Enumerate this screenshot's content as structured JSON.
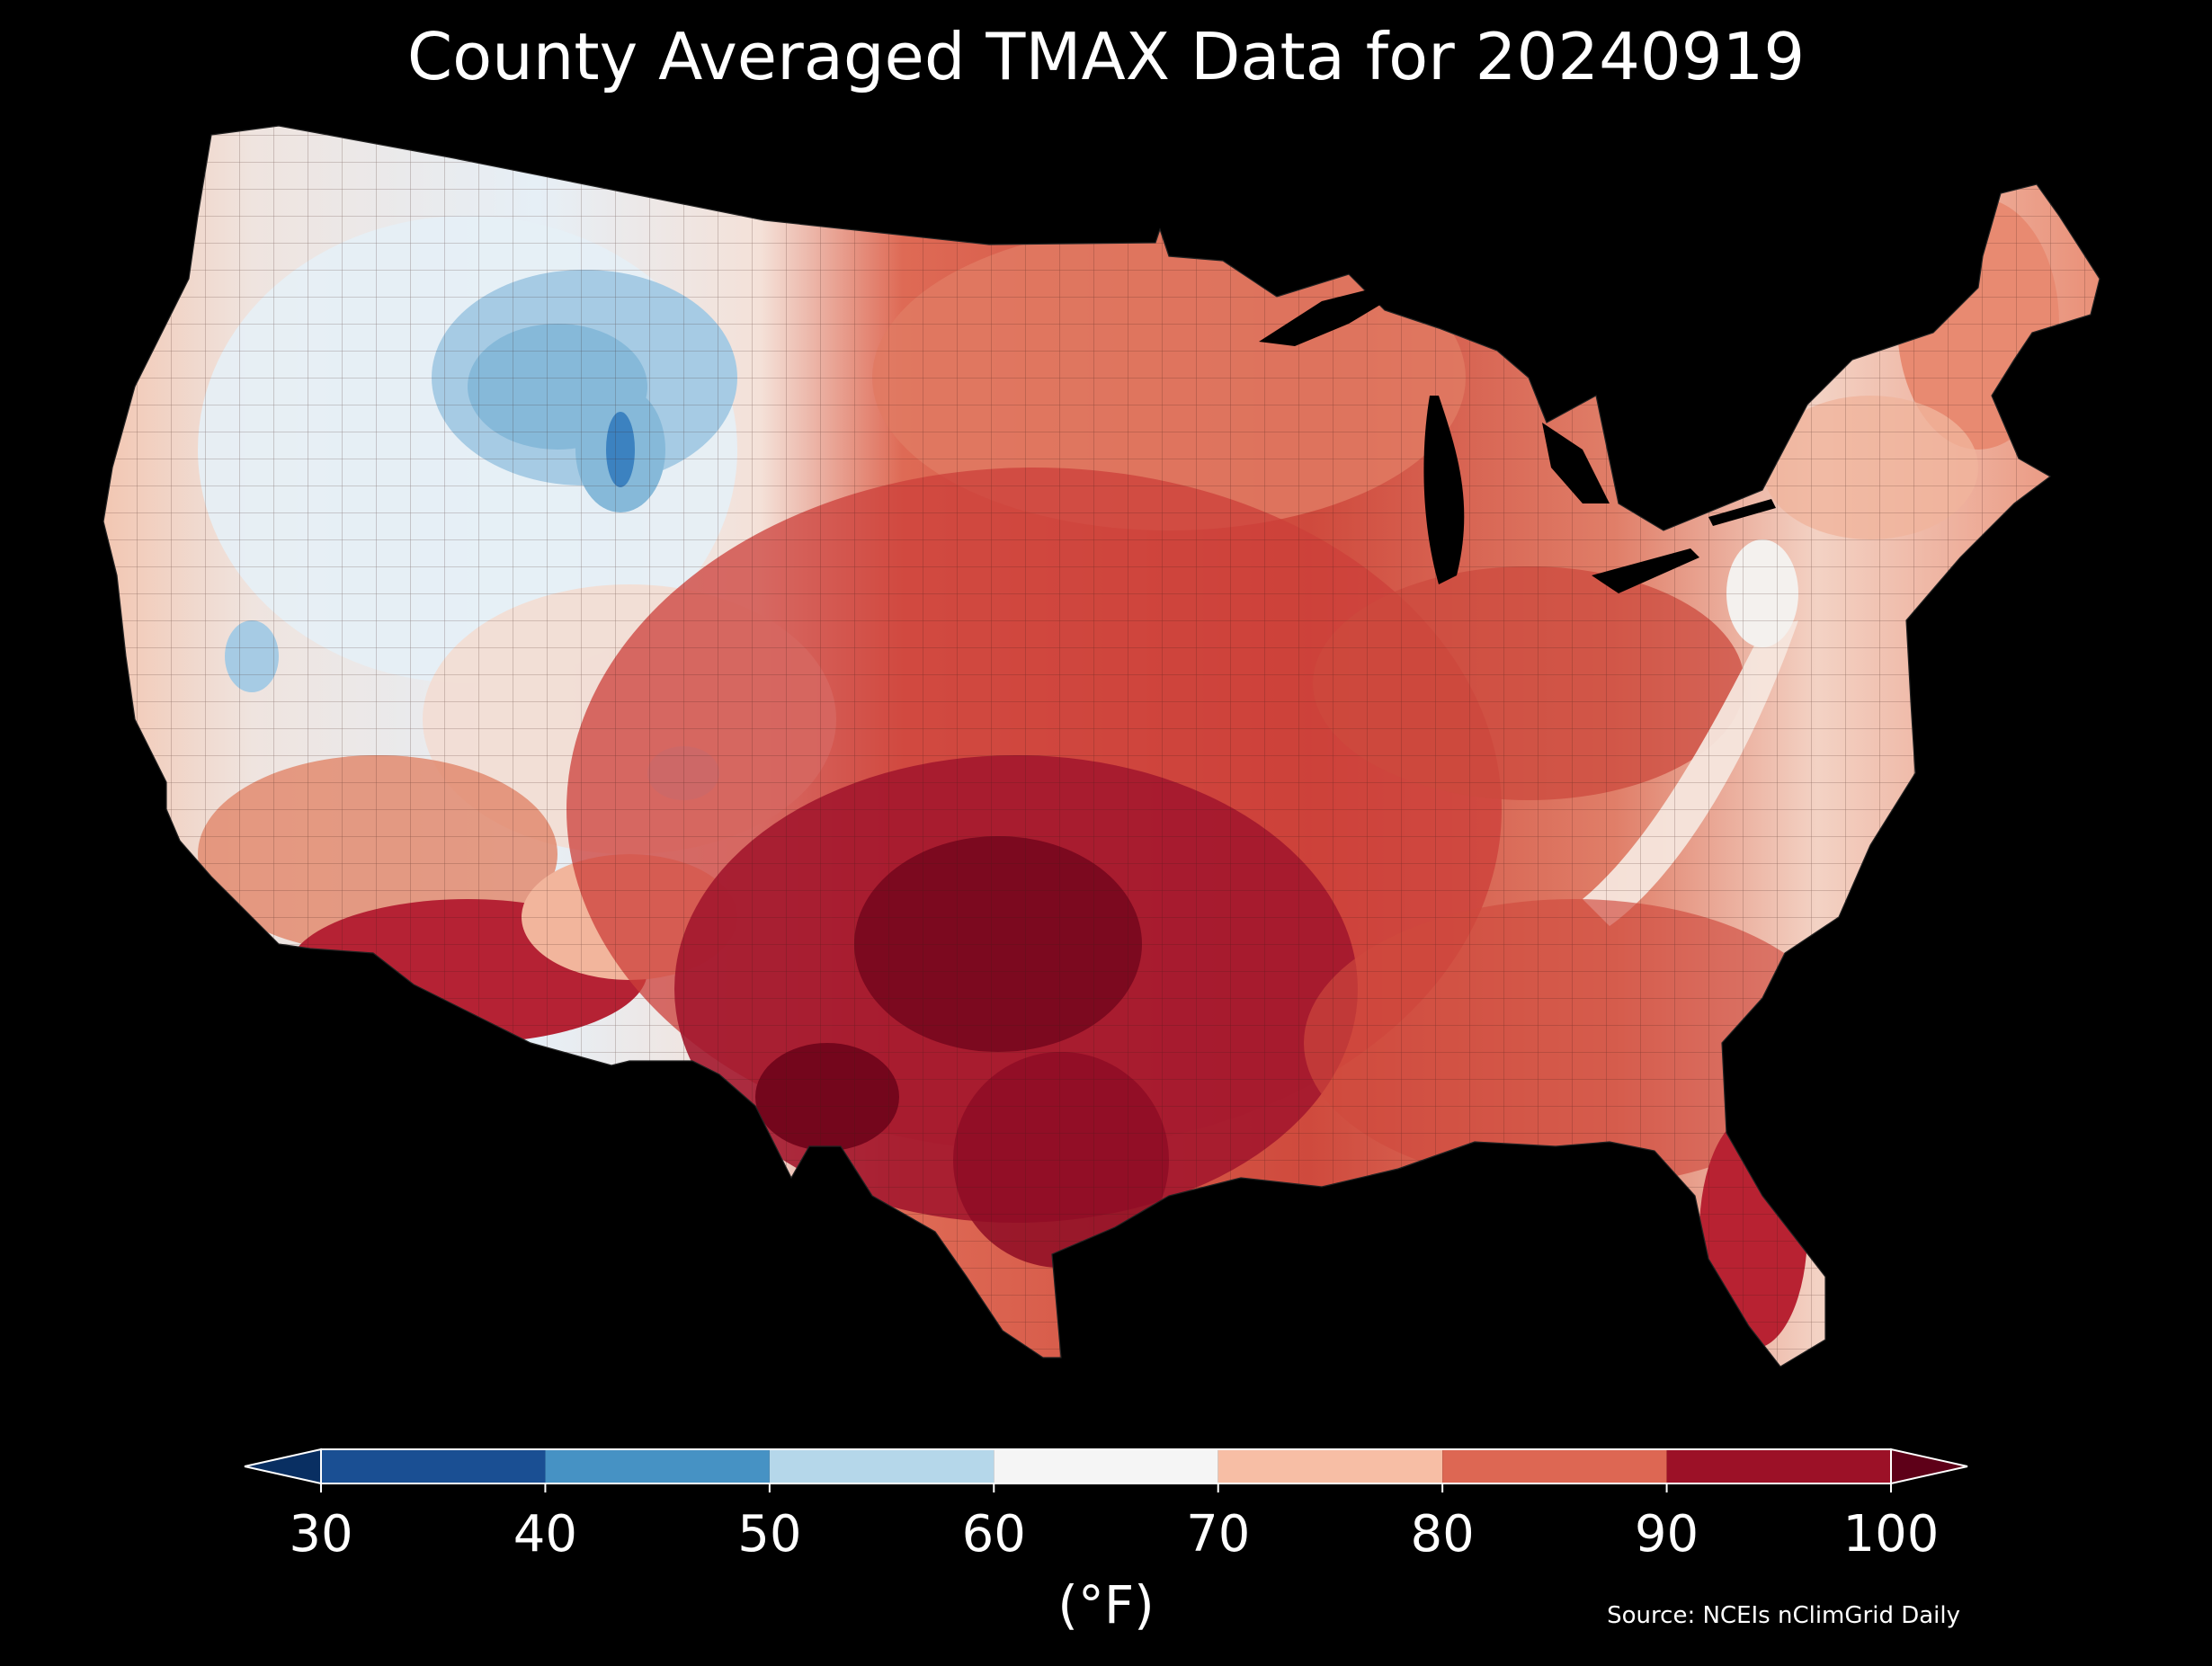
{
  "title": "County Averaged TMAX Data for 20240919",
  "colorbar": {
    "label": "(°F)",
    "ticks": [
      "30",
      "40",
      "50",
      "60",
      "70",
      "80",
      "90",
      "100"
    ],
    "bins": [
      {
        "range": [
          30,
          40
        ],
        "color": "#1a4f93"
      },
      {
        "range": [
          40,
          50
        ],
        "color": "#4692c4"
      },
      {
        "range": [
          50,
          60
        ],
        "color": "#b5d7ea"
      },
      {
        "range": [
          60,
          70
        ],
        "color": "#f5f5f5"
      },
      {
        "range": [
          70,
          80
        ],
        "color": "#f7bea5"
      },
      {
        "range": [
          80,
          90
        ],
        "color": "#dd6753"
      },
      {
        "range": [
          90,
          100
        ],
        "color": "#9c1127"
      }
    ],
    "under_color": "#092f62",
    "over_color": "#5e0018"
  },
  "source": "Source: NCEIs nClimGrid Daily",
  "map": {
    "background": "#000000",
    "region_fills": {
      "northwest_cool": "#e3eef6",
      "rockies_cold": "#86b9d9",
      "yellowstone_coldest": "#3c82c0",
      "west_coast_mild": "#f3c4ae",
      "plains_warm": "#d9604c",
      "texas_hot": "#a3172d",
      "texas_hottest": "#74061c",
      "appalachian_mild": "#f5e6dd",
      "northeast_warm": "#e88a71",
      "southeast_warm": "#cf4a3d",
      "florida": "#b82232"
    }
  }
}
